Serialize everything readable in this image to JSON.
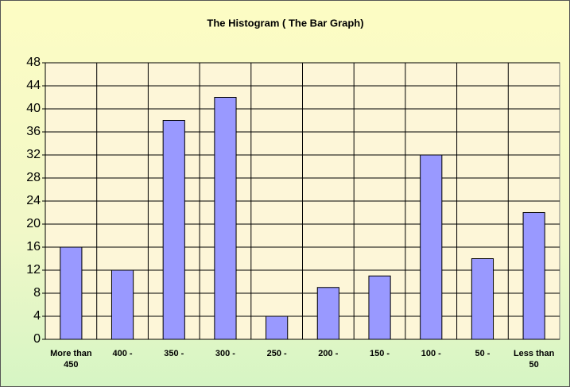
{
  "chart_data": {
    "type": "bar",
    "title": "The Histogram ( The Bar Graph)",
    "categories": [
      "More than 450",
      "400 -",
      "350 -",
      "300 -",
      "250 -",
      "200 -",
      "150 -",
      "100 -",
      "50 -",
      "Less than 50"
    ],
    "values": [
      16,
      12,
      38,
      42,
      4,
      9,
      11,
      32,
      14,
      22
    ],
    "color": "#9999ff",
    "ylim": [
      0,
      48
    ],
    "yticks": [
      0,
      4,
      8,
      12,
      16,
      20,
      24,
      28,
      32,
      36,
      40,
      44,
      48
    ],
    "grid": true
  }
}
